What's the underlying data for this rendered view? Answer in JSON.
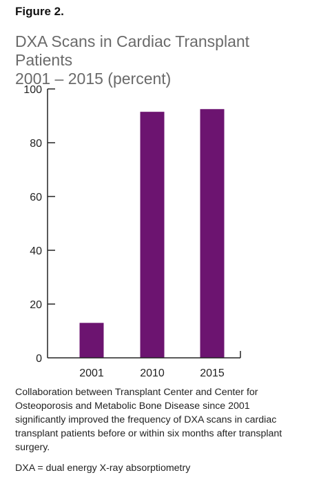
{
  "figure_label": "Figure 2.",
  "caption": "Collaboration between Transplant Center and Center for Osteoporosis and Metabolic Bone Disease since 2001 significantly improved the frequency of DXA scans in cardiac transplant patients before or within six months after transplant surgery.",
  "footnote": "DXA = dual energy X-ray absorptiometry",
  "colors": {
    "bar": "#6c1470",
    "axis": "#222222"
  },
  "chart_data": {
    "type": "bar",
    "title_line1": "DXA Scans in Cardiac Transplant Patients",
    "title_line2": "2001 – 2015 (percent)",
    "categories": [
      "2001",
      "2010",
      "2015"
    ],
    "values": [
      13,
      91.5,
      92.5
    ],
    "ylim": [
      0,
      100
    ],
    "yticks": [
      0,
      20,
      40,
      60,
      80,
      100
    ],
    "xlabel": "",
    "ylabel": "",
    "grid": false,
    "legend": "none"
  }
}
